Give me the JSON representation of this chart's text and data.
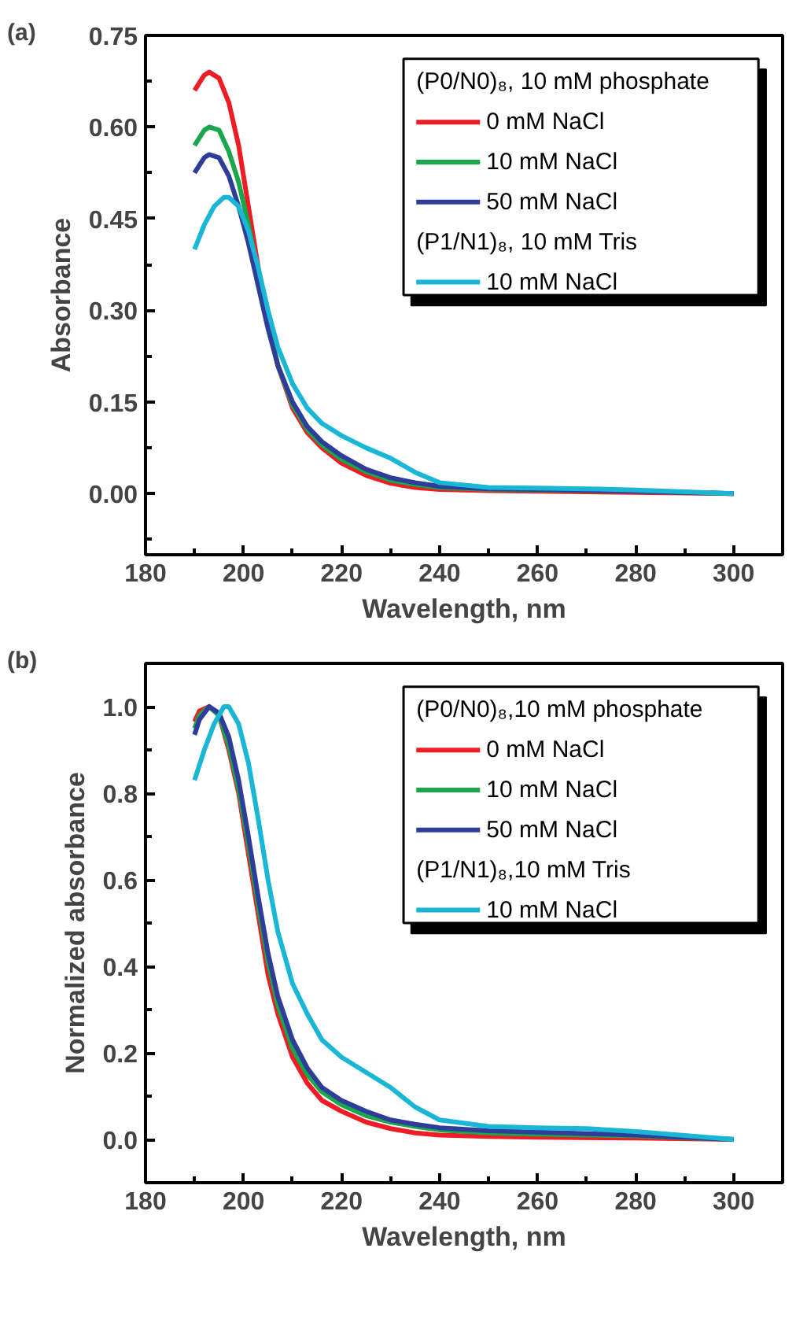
{
  "chart_data": [
    {
      "type": "line",
      "title": "(a)",
      "xlabel": "Wavelength, nm",
      "ylabel": "Absorbance",
      "legend_title": "(P0/N0)₈, 10 mM phosphate",
      "annotations": [
        "(P1/N1)₈, 10 mM Tris"
      ],
      "legend": "top right",
      "grid": false,
      "marker": "none",
      "line_style": "solid",
      "xlim": [
        180,
        310
      ],
      "ylim": [
        -0.1,
        0.75
      ],
      "xticks": [
        180,
        {
          "value": 190,
          "label": null
        },
        200,
        {
          "value": 210,
          "label": null
        },
        220,
        {
          "value": 230,
          "label": null
        },
        240,
        {
          "value": 250,
          "label": null
        },
        260,
        {
          "value": 270,
          "label": null
        },
        280,
        {
          "value": 290,
          "label": null
        },
        300
      ],
      "yticks": [
        {
          "value": -0.075,
          "label": null
        },
        {
          "value": 0.0,
          "label": "0.00"
        },
        {
          "value": 0.075,
          "label": null
        },
        {
          "value": 0.15,
          "label": "0.15"
        },
        {
          "value": 0.225,
          "label": null
        },
        {
          "value": 0.3,
          "label": "0.30"
        },
        {
          "value": 0.375,
          "label": null
        },
        {
          "value": 0.45,
          "label": "0.45"
        },
        {
          "value": 0.525,
          "label": null
        },
        {
          "value": 0.6,
          "label": "0.60"
        },
        {
          "value": 0.675,
          "label": null
        },
        {
          "value": 0.75,
          "label": "0.75"
        }
      ],
      "x": [
        190,
        192,
        193,
        195,
        197,
        199,
        201,
        203,
        205,
        207,
        210,
        213,
        216,
        220,
        225,
        230,
        235,
        240,
        250,
        260,
        280,
        300
      ],
      "series": [
        {
          "name": "0 mM NaCl",
          "color": "#ee1c25",
          "values": [
            0.66,
            0.685,
            0.69,
            0.68,
            0.64,
            0.57,
            0.47,
            0.37,
            0.28,
            0.21,
            0.14,
            0.1,
            0.075,
            0.05,
            0.03,
            0.017,
            0.01,
            0.007,
            0.005,
            0.004,
            0.002,
            0.0
          ]
        },
        {
          "name": "10 mM NaCl",
          "color": "#1aa64a",
          "values": [
            0.57,
            0.595,
            0.6,
            0.595,
            0.56,
            0.51,
            0.44,
            0.36,
            0.28,
            0.21,
            0.145,
            0.105,
            0.08,
            0.056,
            0.036,
            0.022,
            0.015,
            0.01,
            0.007,
            0.006,
            0.004,
            0.0
          ]
        },
        {
          "name": "50 mM NaCl",
          "color": "#2e3d9a",
          "values": [
            0.525,
            0.55,
            0.555,
            0.55,
            0.52,
            0.47,
            0.41,
            0.34,
            0.27,
            0.21,
            0.15,
            0.11,
            0.085,
            0.062,
            0.04,
            0.026,
            0.018,
            0.012,
            0.008,
            0.007,
            0.004,
            0.0
          ]
        },
        {
          "name": "10 mM NaCl",
          "color": "#19b6d6",
          "x": [
            190,
            192,
            194,
            196,
            197,
            199,
            201,
            203,
            205,
            207,
            210,
            213,
            216,
            220,
            225,
            230,
            235,
            240,
            250,
            260,
            270,
            280,
            300
          ],
          "values": [
            0.4,
            0.44,
            0.47,
            0.485,
            0.485,
            0.47,
            0.43,
            0.37,
            0.3,
            0.24,
            0.18,
            0.14,
            0.115,
            0.095,
            0.075,
            0.058,
            0.035,
            0.018,
            0.01,
            0.009,
            0.008,
            0.006,
            0.0
          ]
        }
      ]
    },
    {
      "type": "line",
      "title": "(b)",
      "xlabel": "Wavelength, nm",
      "ylabel": "Normalized absorbance",
      "legend_title": "(P0/N0)₈,10 mM phosphate",
      "annotations": [
        "(P1/N1)₈,10 mM Tris"
      ],
      "legend": "top right",
      "grid": false,
      "marker": "none",
      "line_style": "solid",
      "xlim": [
        180,
        310
      ],
      "ylim": [
        -0.1,
        1.1
      ],
      "xticks": [
        180,
        {
          "value": 190,
          "label": null
        },
        200,
        {
          "value": 210,
          "label": null
        },
        220,
        {
          "value": 230,
          "label": null
        },
        240,
        {
          "value": 250,
          "label": null
        },
        260,
        {
          "value": 270,
          "label": null
        },
        280,
        {
          "value": 290,
          "label": null
        },
        300
      ],
      "yticks": [
        {
          "value": 0.0,
          "label": "0.0"
        },
        {
          "value": 0.1,
          "label": null
        },
        {
          "value": 0.2,
          "label": "0.2"
        },
        {
          "value": 0.3,
          "label": null
        },
        {
          "value": 0.4,
          "label": "0.4"
        },
        {
          "value": 0.5,
          "label": null
        },
        {
          "value": 0.6,
          "label": "0.6"
        },
        {
          "value": 0.7,
          "label": null
        },
        {
          "value": 0.8,
          "label": "0.8"
        },
        {
          "value": 0.9,
          "label": null
        },
        {
          "value": 1.0,
          "label": "1.0"
        }
      ],
      "x": [
        190,
        191,
        193,
        195,
        197,
        199,
        201,
        203,
        205,
        207,
        210,
        213,
        216,
        220,
        225,
        230,
        235,
        240,
        250,
        260,
        280,
        300
      ],
      "series": [
        {
          "name": "0 mM NaCl",
          "color": "#ee1c25",
          "values": [
            0.965,
            0.99,
            1.0,
            0.98,
            0.9,
            0.8,
            0.66,
            0.52,
            0.38,
            0.29,
            0.19,
            0.13,
            0.09,
            0.065,
            0.04,
            0.025,
            0.015,
            0.01,
            0.007,
            0.005,
            0.003,
            0.0
          ]
        },
        {
          "name": "10 mM NaCl",
          "color": "#1aa64a",
          "values": [
            0.95,
            0.98,
            1.0,
            0.98,
            0.91,
            0.81,
            0.68,
            0.54,
            0.41,
            0.31,
            0.21,
            0.15,
            0.11,
            0.08,
            0.055,
            0.04,
            0.03,
            0.022,
            0.015,
            0.012,
            0.008,
            0.0
          ]
        },
        {
          "name": "50 mM NaCl",
          "color": "#2e3d9a",
          "values": [
            0.935,
            0.97,
            1.0,
            0.985,
            0.93,
            0.83,
            0.7,
            0.56,
            0.43,
            0.33,
            0.23,
            0.165,
            0.12,
            0.09,
            0.065,
            0.045,
            0.035,
            0.027,
            0.02,
            0.017,
            0.01,
            0.0
          ]
        },
        {
          "name": "10 mM NaCl",
          "color": "#19b6d6",
          "x": [
            190,
            192,
            194,
            196,
            197,
            199,
            201,
            203,
            205,
            207,
            210,
            213,
            216,
            220,
            225,
            230,
            235,
            240,
            250,
            260,
            270,
            280,
            300
          ],
          "values": [
            0.83,
            0.9,
            0.96,
            1.0,
            1.0,
            0.96,
            0.87,
            0.74,
            0.6,
            0.48,
            0.36,
            0.29,
            0.23,
            0.19,
            0.155,
            0.12,
            0.075,
            0.045,
            0.03,
            0.027,
            0.025,
            0.018,
            0.0
          ]
        }
      ]
    }
  ]
}
